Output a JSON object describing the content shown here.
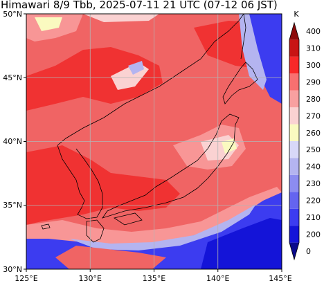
{
  "title": "Himawari 8/9 Tbb, 2025-07-11 21 UTC (07-12 06 JST)",
  "map": {
    "lon_range": [
      125,
      145
    ],
    "lat_range": [
      30,
      50
    ],
    "x_ticks": [
      "125°E",
      "130°E",
      "135°E",
      "140°E",
      "145°E"
    ],
    "y_ticks": [
      "50°N",
      "45°N",
      "40°N",
      "35°N",
      "30°N"
    ],
    "grid": true
  },
  "colorbar": {
    "unit": "K",
    "levels": [
      "0",
      "200",
      "210",
      "220",
      "230",
      "240",
      "250",
      "260",
      "270",
      "280",
      "290",
      "300",
      "310",
      "400"
    ],
    "colors": [
      "#0a0a8c",
      "#1414d8",
      "#3c3cf0",
      "#6464f0",
      "#8c8cf0",
      "#b4b4f0",
      "#d8d8f8",
      "#fafac0",
      "#fad2d2",
      "#f8a0a0",
      "#f87070",
      "#f82828",
      "#c81414",
      "#8c0a0a"
    ],
    "extend": "both"
  },
  "field_colors": {
    "warm_base": "#f06464",
    "hot": "#f03232",
    "mid": "#f89696",
    "light": "#fad2d2",
    "cream": "#fafac0",
    "cold_blue": "#3c3cf0",
    "pale_blue": "#b4b4f0"
  }
}
